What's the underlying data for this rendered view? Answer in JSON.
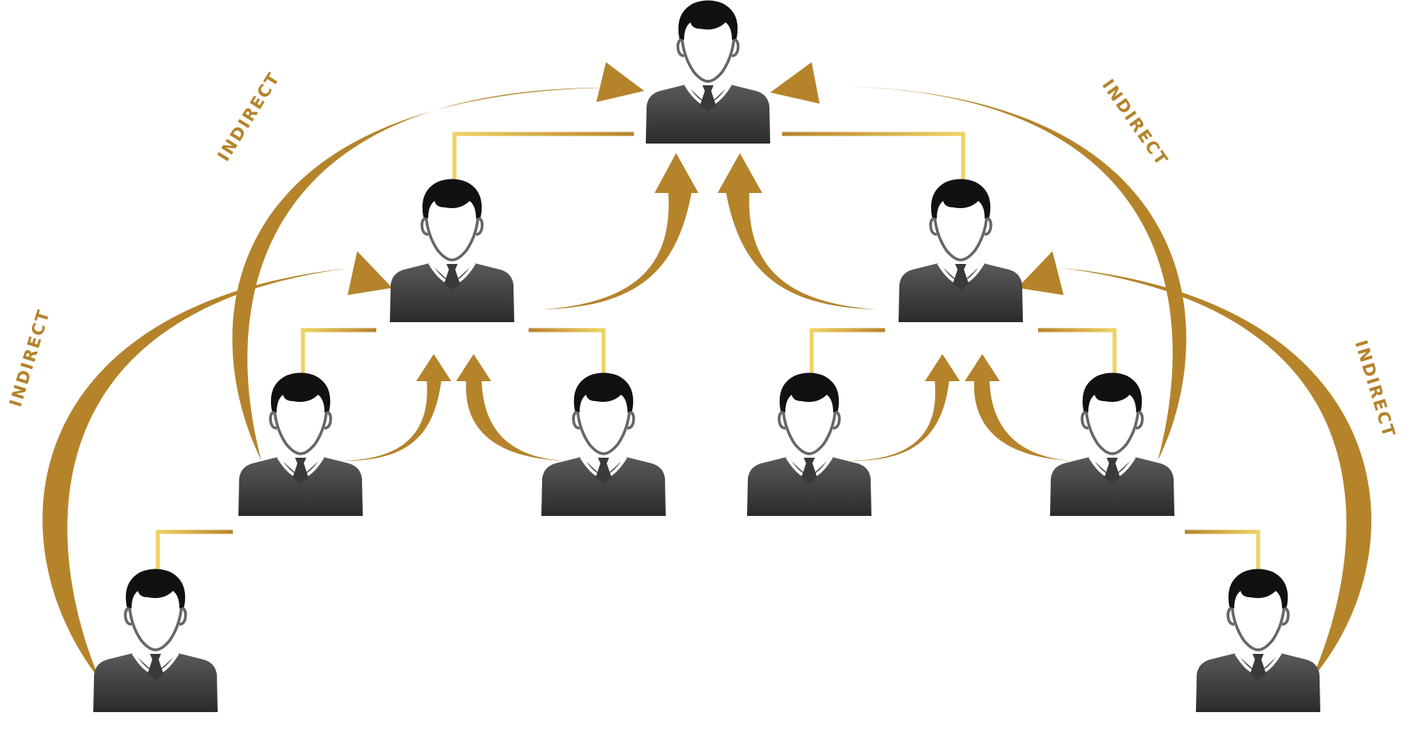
{
  "colors": {
    "gold": "#B5832A",
    "gold_light": "#F0D263",
    "body_top": "#5a5a5a",
    "body_bottom": "#2b2b2b",
    "hair": "#111111",
    "outline": "#666666"
  },
  "icons": {
    "person": "businessman-icon",
    "arrow": "curved-arrow-icon",
    "connector": "org-connector-icon"
  },
  "labels": {
    "indirect": "INDIRECT"
  }
}
